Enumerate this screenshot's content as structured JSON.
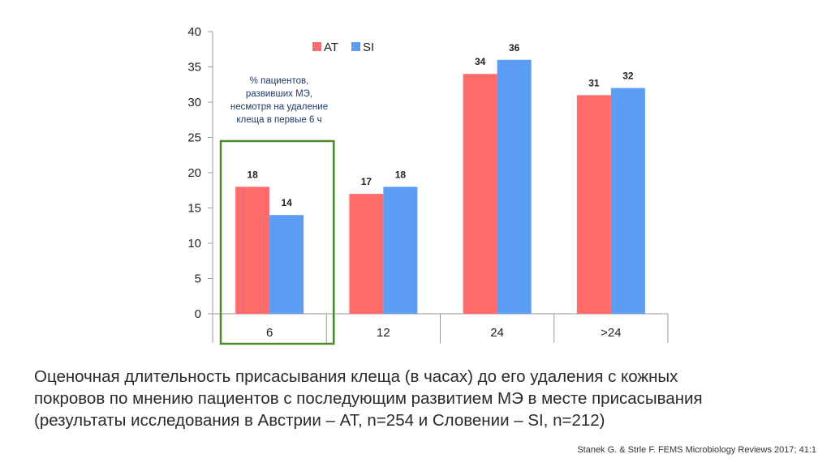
{
  "chart_data": {
    "type": "bar",
    "categories": [
      "6",
      "12",
      "24",
      ">24"
    ],
    "series": [
      {
        "name": "AT",
        "color": "#ff6b6b",
        "values": [
          18,
          17,
          34,
          31
        ]
      },
      {
        "name": "SI",
        "color": "#5b9cf5",
        "values": [
          14,
          18,
          36,
          32
        ]
      }
    ],
    "ylim": [
      0,
      40
    ],
    "yticks": [
      "0",
      "5",
      "10",
      "15",
      "20",
      "25",
      "30",
      "35",
      "40"
    ],
    "grid": false,
    "legend_position": "top",
    "highlight": {
      "category": "6",
      "color": "#4b8a2a",
      "note_lines": [
        "% пациентов,",
        "развивших МЭ,",
        "несмотря на удаление",
        "клеща в первые 6 ч"
      ]
    }
  },
  "caption": {
    "lines": [
      "Оценочная длительность присасывания клеща (в часах) до его удаления с кожных",
      "покровов по мнению пациентов с последующим развитием МЭ в месте присасывания",
      "(результаты исследования в Австрии – AT, n=254 и Словении – SI, n=212)"
    ]
  },
  "source": "Stanek G. & Strle F. FEMS Microbiology Reviews 2017; 41:1"
}
